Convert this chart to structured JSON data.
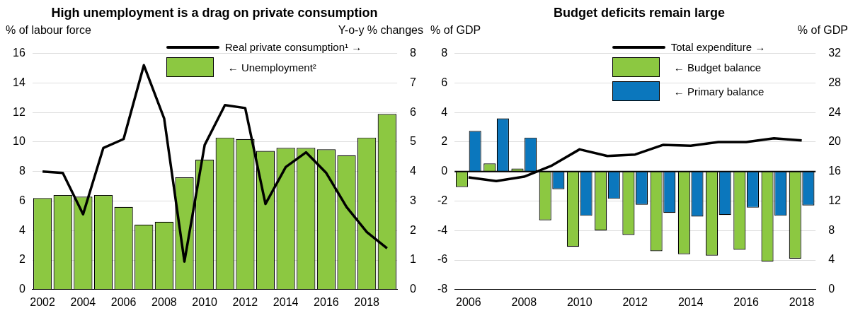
{
  "chart_data": [
    {
      "type": "bar",
      "title": "High unemployment is a drag on private consumption",
      "ylabel": "% of labour force",
      "y2label": "Y-o-y % changes",
      "categories": [
        "2002",
        null,
        "2004",
        null,
        "2006",
        null,
        "2008",
        null,
        "2010",
        null,
        "2012",
        null,
        "2014",
        null,
        "2016",
        null,
        "2018",
        null
      ],
      "series": [
        {
          "name": "Real private consumption¹ →",
          "type": "line",
          "axis": "y2",
          "color": "#000000",
          "values": [
            4.0,
            3.95,
            2.55,
            4.8,
            5.1,
            7.6,
            5.8,
            0.95,
            4.9,
            6.25,
            6.15,
            2.9,
            4.15,
            4.65,
            3.95,
            2.8,
            1.95,
            1.4
          ]
        },
        {
          "name": "← Unemployment²",
          "color": "#8cc841",
          "values": [
            6.2,
            6.4,
            6.3,
            6.4,
            5.6,
            4.4,
            4.6,
            7.6,
            8.8,
            10.3,
            10.2,
            9.4,
            9.6,
            9.6,
            9.5,
            9.1,
            10.3,
            11.9
          ]
        }
      ],
      "ylim": [
        0,
        16
      ],
      "yticks": [
        0,
        2,
        4,
        6,
        8,
        10,
        12,
        14,
        16
      ],
      "y2lim": [
        0,
        8
      ],
      "y2ticks": [
        0,
        1,
        2,
        3,
        4,
        5,
        6,
        7,
        8
      ],
      "grid": "y",
      "legend": "top"
    },
    {
      "type": "bar",
      "title": "Budget deficits remain large",
      "ylabel": "% of GDP",
      "y2label": "% of GDP",
      "categories": [
        "2006",
        null,
        "2008",
        null,
        "2010",
        null,
        "2012",
        null,
        "2014",
        null,
        "2016",
        null,
        "2018"
      ],
      "series": [
        {
          "name": "Total expenditure →",
          "type": "line",
          "axis": "y2",
          "color": "#000000",
          "values": [
            15.2,
            14.7,
            15.3,
            16.8,
            19.0,
            18.1,
            18.3,
            19.6,
            19.5,
            20.0,
            20.0,
            20.5,
            20.2
          ]
        },
        {
          "name": "← Budget balance",
          "color": "#8cc841",
          "values": [
            -1.05,
            0.55,
            0.2,
            -3.3,
            -5.1,
            -4.0,
            -4.3,
            -5.4,
            -5.6,
            -5.7,
            -5.3,
            -6.1,
            -5.9
          ]
        },
        {
          "name": "← Primary balance",
          "color": "#0b77bd",
          "values": [
            2.75,
            3.6,
            2.3,
            -1.2,
            -3.0,
            -1.85,
            -2.25,
            -2.8,
            -3.05,
            -2.95,
            -2.45,
            -3.0,
            -2.3
          ]
        }
      ],
      "ylim": [
        -8,
        8
      ],
      "yticks": [
        -8,
        -6,
        -4,
        -2,
        0,
        2,
        4,
        6,
        8
      ],
      "y2lim": [
        0,
        32
      ],
      "y2ticks": [
        0,
        4,
        8,
        12,
        16,
        20,
        24,
        28,
        32
      ],
      "grid": "y",
      "legend": "top"
    }
  ]
}
